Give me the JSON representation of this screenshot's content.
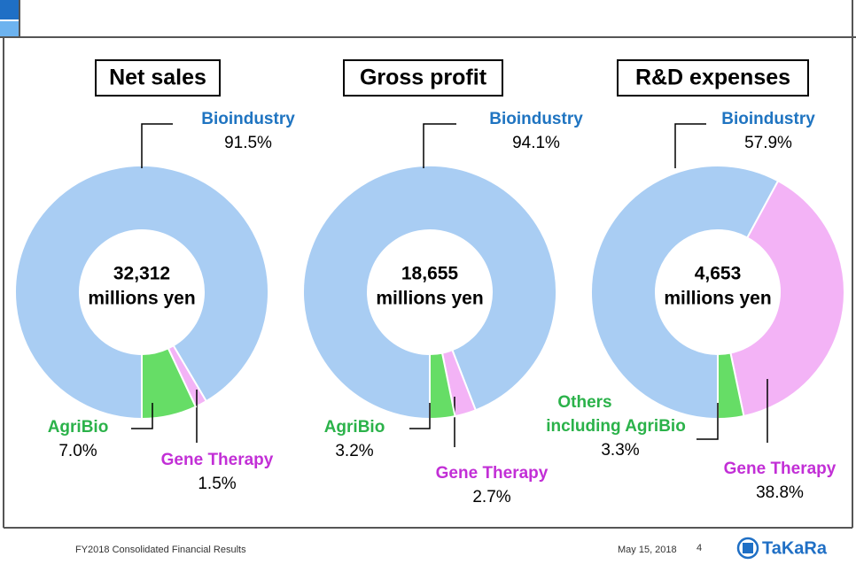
{
  "chart_data": [
    {
      "type": "pie",
      "title": "Net sales",
      "center_value": "32,312",
      "center_unit": "millions yen",
      "categories": [
        "Bioindustry",
        "Gene Therapy",
        "AgriBio"
      ],
      "values": [
        91.5,
        1.5,
        7.0
      ],
      "value_labels": [
        "91.5%",
        "1.5%",
        "7.0%"
      ],
      "colors": [
        "#a9cdf3",
        "#f3b3f6",
        "#66dd66"
      ],
      "label_colors": [
        "#1f74c1",
        "#c22fd6",
        "#2bb24a"
      ]
    },
    {
      "type": "pie",
      "title": "Gross profit",
      "center_value": "18,655",
      "center_unit": "millions yen",
      "categories": [
        "Bioindustry",
        "Gene Therapy",
        "AgriBio"
      ],
      "values": [
        94.1,
        2.7,
        3.2
      ],
      "value_labels": [
        "94.1%",
        "2.7%",
        "3.2%"
      ],
      "colors": [
        "#a9cdf3",
        "#f3b3f6",
        "#66dd66"
      ],
      "label_colors": [
        "#1f74c1",
        "#c22fd6",
        "#2bb24a"
      ]
    },
    {
      "type": "pie",
      "title": "R&D expenses",
      "center_value": "4,653",
      "center_unit": "millions yen",
      "categories": [
        "Bioindustry",
        "Gene Therapy",
        "Others including AgriBio"
      ],
      "values": [
        57.9,
        38.8,
        3.3
      ],
      "value_labels": [
        "57.9%",
        "38.8%",
        "3.3%"
      ],
      "colors": [
        "#a9cdf3",
        "#f3b3f6",
        "#66dd66"
      ],
      "label_colors": [
        "#1f74c1",
        "#c22fd6",
        "#2bb24a"
      ]
    }
  ],
  "footer": {
    "left": "FY2018 Consolidated Financial Results",
    "date": "May 15, 2018",
    "page": "4",
    "logo": "TaKaRa"
  }
}
